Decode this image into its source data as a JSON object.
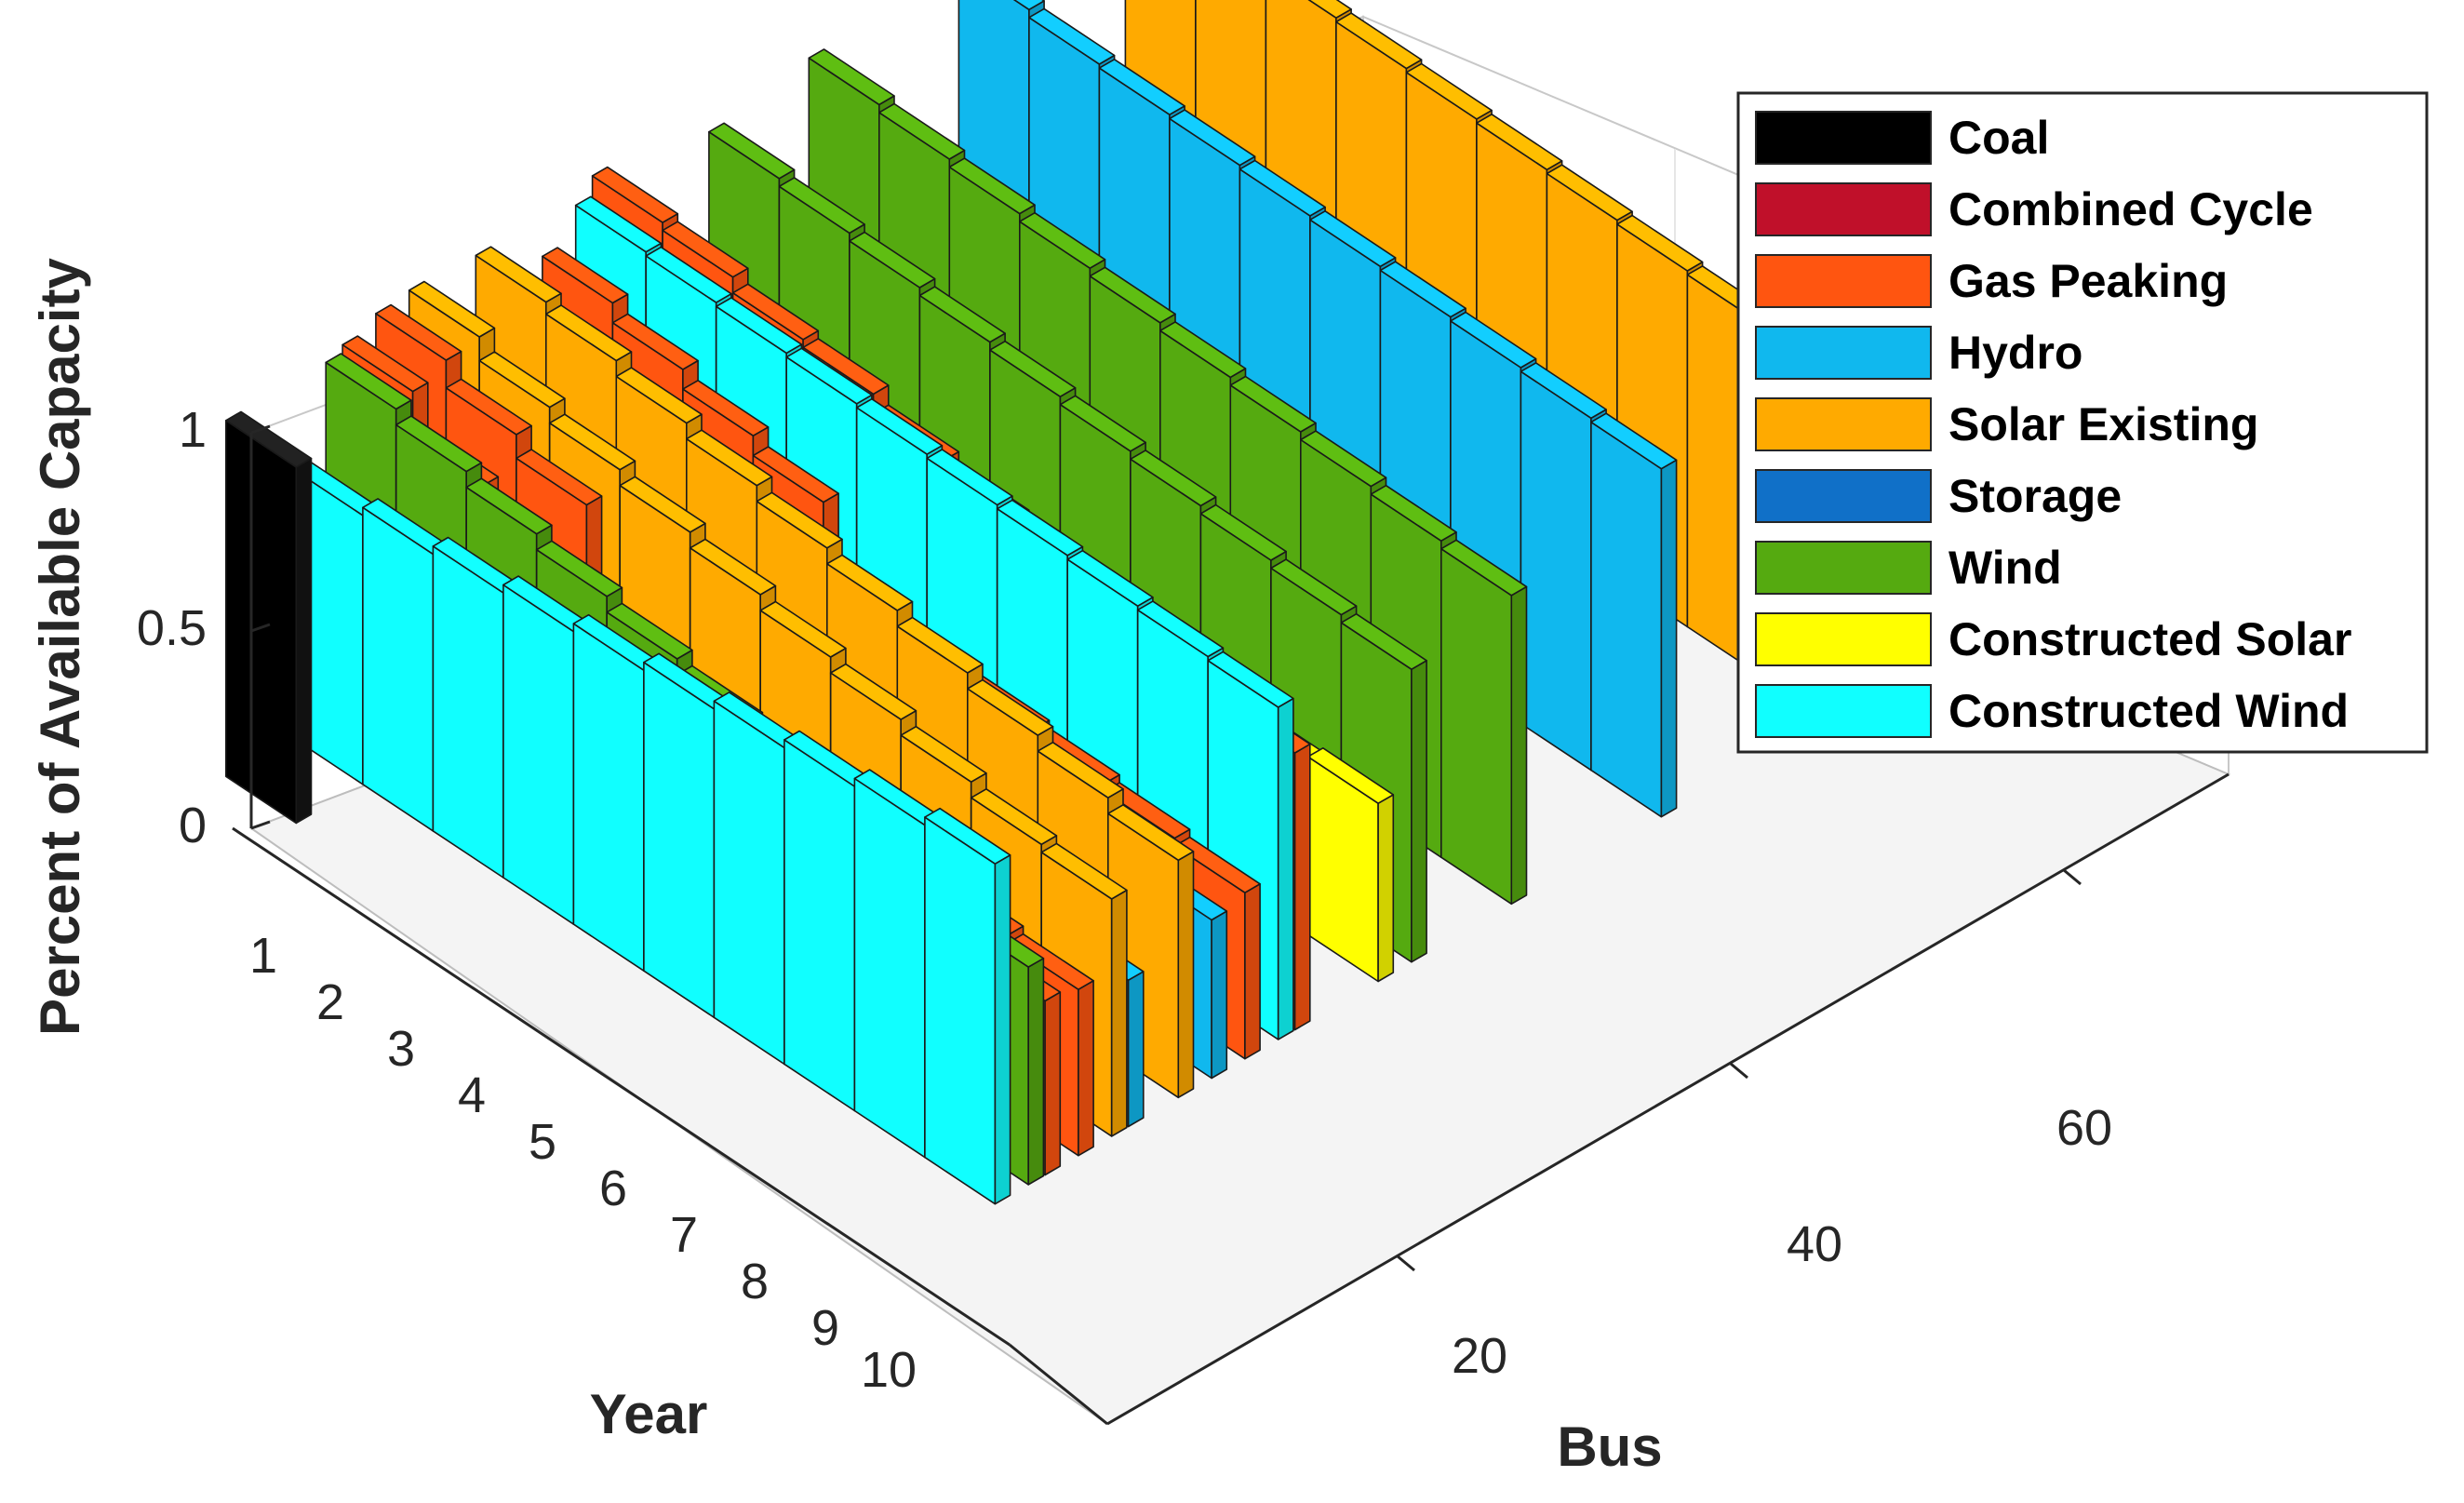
{
  "chart_data": {
    "type": "bar3d",
    "title": "",
    "xlabel": "Bus",
    "ylabel": "Year",
    "zlabel": "Percent of Available Capacity",
    "x_ticks": [
      "20",
      "40",
      "60"
    ],
    "y_ticks": [
      "1",
      "2",
      "3",
      "4",
      "5",
      "6",
      "7",
      "8",
      "9",
      "10"
    ],
    "z_ticks": [
      "0",
      "0.5",
      "1"
    ],
    "zlim": [
      0,
      1
    ],
    "legend_position": "top-right",
    "legend": [
      {
        "name": "Coal",
        "color": "#000000"
      },
      {
        "name": "Combined Cycle",
        "color": "#C0102A"
      },
      {
        "name": "Gas Peaking",
        "color": "#FF5510"
      },
      {
        "name": "Hydro",
        "color": "#10B8EE"
      },
      {
        "name": "Solar Existing",
        "color": "#FFAA00"
      },
      {
        "name": "Storage",
        "color": "#1070C8"
      },
      {
        "name": "Wind",
        "color": "#55AA10"
      },
      {
        "name": "Constructed Solar",
        "color": "#FFFF00"
      },
      {
        "name": "Constructed Wind",
        "color": "#10FFFF"
      }
    ],
    "series": [
      {
        "name": "Constructed Wind",
        "bus": 5,
        "values": [
          0.68,
          0.7,
          0.72,
          0.74,
          0.76,
          0.78,
          0.8,
          0.82,
          0.84,
          0.86
        ]
      },
      {
        "name": "Wind",
        "bus": 7,
        "values": [
          0.9,
          0.86,
          0.82,
          0.78,
          0.74,
          0.7,
          0.66,
          0.62,
          0.58,
          0.55
        ]
      },
      {
        "name": "Gas Peaking",
        "bus": 8,
        "values": [
          0.92,
          0.8,
          0.7,
          0.4,
          0.35,
          0.36,
          0.38,
          0.4,
          0.42,
          0.44
        ]
      },
      {
        "name": "Gas Peaking",
        "bus": 10,
        "values": [
          0.95,
          0.88,
          0.82,
          0.46,
          0.42,
          0.4,
          0.4,
          0.48,
          0.44,
          0.42
        ]
      },
      {
        "name": "Solar Existing",
        "bus": 12,
        "values": [
          0.96,
          0.9,
          0.86,
          0.82,
          0.78,
          0.74,
          0.7,
          0.66,
          0.62,
          0.6
        ]
      },
      {
        "name": "Hydro",
        "bus": 13,
        "values": [
          0.55,
          0.53,
          0.51,
          0.49,
          0.47,
          0.45,
          0.43,
          0.41,
          0.39,
          0.37
        ]
      },
      {
        "name": "Solar Existing",
        "bus": 16,
        "values": [
          0.95,
          0.92,
          0.88,
          0.84,
          0.8,
          0.76,
          0.72,
          0.68,
          0.64,
          0.6
        ]
      },
      {
        "name": "Hydro",
        "bus": 18,
        "values": [
          0.58,
          0.56,
          0.54,
          0.52,
          0.5,
          0.48,
          0.46,
          0.44,
          0.42,
          0.4
        ]
      },
      {
        "name": "Gas Peaking",
        "bus": 20,
        "values": [
          0.85,
          0.8,
          0.75,
          0.7,
          0.55,
          0.5,
          0.48,
          0.46,
          0.44,
          0.42
        ]
      },
      {
        "name": "Constructed Wind",
        "bus": 22,
        "values": [
          0.93,
          0.92,
          0.91,
          0.9,
          0.89,
          0.88,
          0.87,
          0.86,
          0.85,
          0.84
        ]
      },
      {
        "name": "Gas Peaking",
        "bus": 23,
        "values": [
          0.98,
          0.96,
          0.92,
          0.9,
          0.85,
          0.82,
          0.78,
          0.75,
          0.72,
          0.7
        ]
      },
      {
        "name": "Constructed Solar",
        "bus": 28,
        "values": [
          0.2,
          0.22,
          0.25,
          0.3,
          0.34,
          0.38,
          0.4,
          0.42,
          0.44,
          0.45
        ]
      },
      {
        "name": "Wind",
        "bus": 30,
        "values": [
          0.92,
          0.9,
          0.88,
          0.86,
          0.84,
          0.82,
          0.8,
          0.78,
          0.76,
          0.74
        ]
      },
      {
        "name": "Wind",
        "bus": 36,
        "values": [
          0.96,
          0.94,
          0.92,
          0.9,
          0.88,
          0.86,
          0.84,
          0.82,
          0.8,
          0.78
        ]
      },
      {
        "name": "Hydro",
        "bus": 45,
        "values": [
          0.98,
          0.96,
          0.95,
          0.94,
          0.93,
          0.92,
          0.91,
          0.9,
          0.89,
          0.88
        ]
      },
      {
        "name": "Solar Existing",
        "bus": 55,
        "values": [
          0.97,
          0.96,
          0.95,
          0.94,
          0.93,
          0.92,
          0.91,
          0.9,
          0.89,
          0.88
        ]
      }
    ]
  }
}
